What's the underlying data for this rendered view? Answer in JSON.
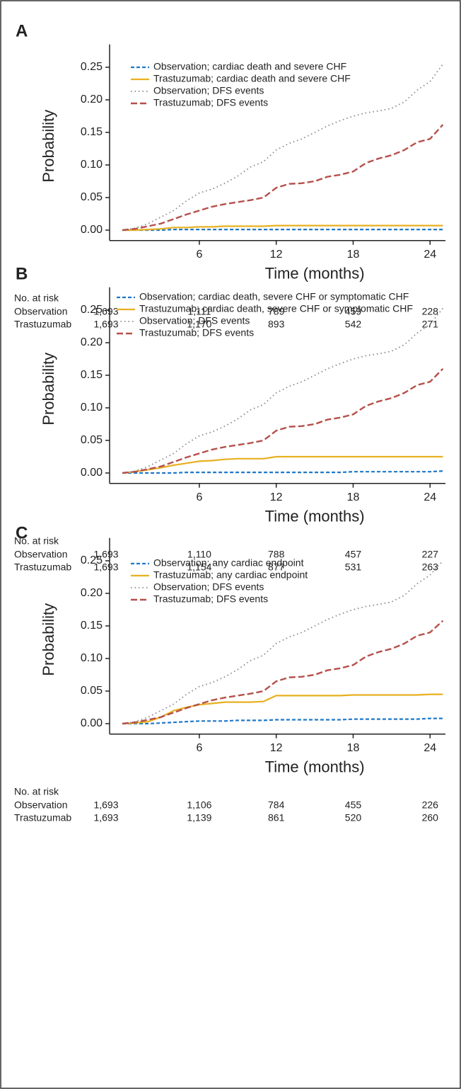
{
  "chart_data": [
    {
      "type": "line",
      "panel": "A",
      "ylabel": "Probability",
      "xlabel": "Time (months)",
      "x": [
        0,
        1,
        2,
        3,
        4,
        5,
        6,
        7,
        8,
        9,
        10,
        11,
        12,
        13,
        14,
        15,
        16,
        17,
        18,
        19,
        20,
        21,
        22,
        23,
        24,
        25
      ],
      "xlim": [
        -1,
        25.2
      ],
      "xticks": [
        6,
        12,
        18,
        24
      ],
      "ylim": [
        -0.016,
        0.285
      ],
      "yticks": [
        {
          "value": 0,
          "label": "0.00"
        },
        {
          "value": 0.05,
          "label": "0.05"
        },
        {
          "value": 0.1,
          "label": "0.10"
        },
        {
          "value": 0.15,
          "label": "0.15"
        },
        {
          "value": 0.2,
          "label": "0.20"
        },
        {
          "value": 0.25,
          "label": "0.25"
        }
      ],
      "series": [
        {
          "name": "Observation; cardiac death and severe CHF",
          "color": "#1f78c8",
          "style": "short-dash",
          "values": [
            0,
            0,
            0,
            0,
            0.001,
            0.001,
            0.001,
            0.001,
            0.001,
            0.001,
            0.001,
            0.001,
            0.001,
            0.001,
            0.001,
            0.001,
            0.001,
            0.001,
            0.001,
            0.001,
            0.001,
            0.001,
            0.001,
            0.001,
            0.001,
            0.001
          ]
        },
        {
          "name": "Trastuzumab; cardiac death and severe CHF",
          "color": "#e8b020",
          "style": "solid",
          "values": [
            0,
            0,
            0.001,
            0.002,
            0.004,
            0.004,
            0.005,
            0.005,
            0.006,
            0.006,
            0.006,
            0.006,
            0.007,
            0.007,
            0.007,
            0.007,
            0.007,
            0.007,
            0.007,
            0.007,
            0.007,
            0.007,
            0.007,
            0.007,
            0.007,
            0.007
          ]
        },
        {
          "name": "Observation; DFS events",
          "color": "#888888",
          "style": "dotted",
          "values": [
            0,
            0.003,
            0.01,
            0.02,
            0.03,
            0.045,
            0.057,
            0.063,
            0.072,
            0.083,
            0.097,
            0.105,
            0.123,
            0.133,
            0.14,
            0.15,
            0.16,
            0.168,
            0.175,
            0.18,
            0.183,
            0.187,
            0.197,
            0.215,
            0.228,
            0.255
          ]
        },
        {
          "name": "Trastuzumab; DFS events",
          "color": "#b5504b",
          "style": "long-dash",
          "values": [
            0,
            0.002,
            0.006,
            0.01,
            0.017,
            0.024,
            0.03,
            0.036,
            0.04,
            0.043,
            0.046,
            0.05,
            0.065,
            0.071,
            0.072,
            0.075,
            0.082,
            0.085,
            0.09,
            0.103,
            0.11,
            0.115,
            0.123,
            0.135,
            0.14,
            0.162
          ]
        }
      ],
      "risk_table": {
        "title": "No. at risk",
        "rows": [
          {
            "name": "Observation",
            "values": [
              "1,693",
              "1,111",
              "789",
              "459",
              "228"
            ]
          },
          {
            "name": "Trastuzumab",
            "values": [
              "1,693",
              "1,170",
              "893",
              "542",
              "271"
            ]
          }
        ]
      }
    },
    {
      "type": "line",
      "panel": "B",
      "ylabel": "Probability",
      "xlabel": "Time (months)",
      "x": [
        0,
        1,
        2,
        3,
        4,
        5,
        6,
        7,
        8,
        9,
        10,
        11,
        12,
        13,
        14,
        15,
        16,
        17,
        18,
        19,
        20,
        21,
        22,
        23,
        24,
        25
      ],
      "xlim": [
        -1,
        25.2
      ],
      "xticks": [
        6,
        12,
        18,
        24
      ],
      "ylim": [
        -0.016,
        0.285
      ],
      "yticks": [
        {
          "value": 0,
          "label": "0.00"
        },
        {
          "value": 0.05,
          "label": "0.05"
        },
        {
          "value": 0.1,
          "label": "0.10"
        },
        {
          "value": 0.15,
          "label": "0.15"
        },
        {
          "value": 0.2,
          "label": "0.20"
        },
        {
          "value": 0.25,
          "label": "0.25"
        }
      ],
      "series": [
        {
          "name": "Observation; cardiac death, severe CHF or symptomatic CHF",
          "color": "#1f78c8",
          "style": "short-dash",
          "values": [
            0,
            0,
            0,
            0,
            0,
            0.001,
            0.001,
            0.001,
            0.001,
            0.001,
            0.001,
            0.001,
            0.001,
            0.001,
            0.001,
            0.001,
            0.001,
            0.001,
            0.002,
            0.002,
            0.002,
            0.002,
            0.002,
            0.002,
            0.002,
            0.003
          ]
        },
        {
          "name": "Trastuzumab; cardiac death, severe CHF or symptomatic CHF",
          "color": "#e8b020",
          "style": "solid",
          "values": [
            0,
            0.002,
            0.005,
            0.008,
            0.012,
            0.015,
            0.018,
            0.019,
            0.021,
            0.022,
            0.022,
            0.022,
            0.025,
            0.025,
            0.025,
            0.025,
            0.025,
            0.025,
            0.025,
            0.025,
            0.025,
            0.025,
            0.025,
            0.025,
            0.025,
            0.025
          ]
        },
        {
          "name": "Observation; DFS events",
          "color": "#888888",
          "style": "dotted",
          "values": [
            0,
            0.003,
            0.01,
            0.02,
            0.03,
            0.045,
            0.057,
            0.063,
            0.072,
            0.083,
            0.097,
            0.105,
            0.123,
            0.133,
            0.14,
            0.15,
            0.16,
            0.168,
            0.175,
            0.18,
            0.183,
            0.187,
            0.197,
            0.215,
            0.228,
            0.253
          ]
        },
        {
          "name": "Trastuzumab; DFS events",
          "color": "#b5504b",
          "style": "long-dash",
          "values": [
            0,
            0.002,
            0.006,
            0.01,
            0.017,
            0.024,
            0.03,
            0.036,
            0.04,
            0.043,
            0.046,
            0.05,
            0.065,
            0.071,
            0.072,
            0.075,
            0.082,
            0.085,
            0.09,
            0.103,
            0.11,
            0.115,
            0.123,
            0.135,
            0.14,
            0.16
          ]
        }
      ],
      "risk_table": {
        "title": "No. at risk",
        "rows": [
          {
            "name": "Observation",
            "values": [
              "1,693",
              "1,110",
              "788",
              "457",
              "227"
            ]
          },
          {
            "name": "Trastuzumab",
            "values": [
              "1,693",
              "1,154",
              "877",
              "531",
              "263"
            ]
          }
        ]
      }
    },
    {
      "type": "line",
      "panel": "C",
      "ylabel": "Probability",
      "xlabel": "Time (months)",
      "x": [
        0,
        1,
        2,
        3,
        4,
        5,
        6,
        7,
        8,
        9,
        10,
        11,
        12,
        13,
        14,
        15,
        16,
        17,
        18,
        19,
        20,
        21,
        22,
        23,
        24,
        25
      ],
      "xlim": [
        -1,
        25.2
      ],
      "xticks": [
        6,
        12,
        18,
        24
      ],
      "ylim": [
        -0.016,
        0.285
      ],
      "yticks": [
        {
          "value": 0,
          "label": "0.00"
        },
        {
          "value": 0.05,
          "label": "0.05"
        },
        {
          "value": 0.1,
          "label": "0.10"
        },
        {
          "value": 0.15,
          "label": "0.15"
        },
        {
          "value": 0.2,
          "label": "0.20"
        },
        {
          "value": 0.25,
          "label": "0.25"
        }
      ],
      "series": [
        {
          "name": "Observation; any cardiac endpoint",
          "color": "#1f78c8",
          "style": "short-dash",
          "values": [
            0,
            0,
            0,
            0.001,
            0.002,
            0.003,
            0.004,
            0.004,
            0.004,
            0.005,
            0.005,
            0.005,
            0.006,
            0.006,
            0.006,
            0.006,
            0.006,
            0.006,
            0.007,
            0.007,
            0.007,
            0.007,
            0.007,
            0.007,
            0.008,
            0.008
          ]
        },
        {
          "name": "Trastuzumab; any cardiac endpoint",
          "color": "#e8b020",
          "style": "solid",
          "values": [
            0,
            0.001,
            0.003,
            0.01,
            0.02,
            0.025,
            0.029,
            0.031,
            0.033,
            0.033,
            0.033,
            0.034,
            0.043,
            0.043,
            0.043,
            0.043,
            0.043,
            0.043,
            0.044,
            0.044,
            0.044,
            0.044,
            0.044,
            0.044,
            0.045,
            0.045
          ]
        },
        {
          "name": "Observation; DFS events",
          "color": "#888888",
          "style": "dotted",
          "values": [
            0,
            0.003,
            0.01,
            0.02,
            0.03,
            0.045,
            0.057,
            0.063,
            0.072,
            0.083,
            0.097,
            0.105,
            0.123,
            0.133,
            0.14,
            0.15,
            0.16,
            0.168,
            0.175,
            0.18,
            0.183,
            0.187,
            0.197,
            0.215,
            0.228,
            0.25
          ]
        },
        {
          "name": "Trastuzumab; DFS events",
          "color": "#b5504b",
          "style": "long-dash",
          "values": [
            0,
            0.002,
            0.006,
            0.01,
            0.017,
            0.024,
            0.03,
            0.036,
            0.04,
            0.043,
            0.046,
            0.05,
            0.065,
            0.071,
            0.072,
            0.075,
            0.082,
            0.085,
            0.09,
            0.103,
            0.11,
            0.115,
            0.123,
            0.135,
            0.14,
            0.158
          ]
        }
      ],
      "risk_table": {
        "title": "No. at risk",
        "rows": [
          {
            "name": "Observation",
            "values": [
              "1,693",
              "1,106",
              "784",
              "455",
              "226"
            ]
          },
          {
            "name": "Trastuzumab",
            "values": [
              "1,693",
              "1,139",
              "861",
              "520",
              "260"
            ]
          }
        ]
      }
    }
  ]
}
